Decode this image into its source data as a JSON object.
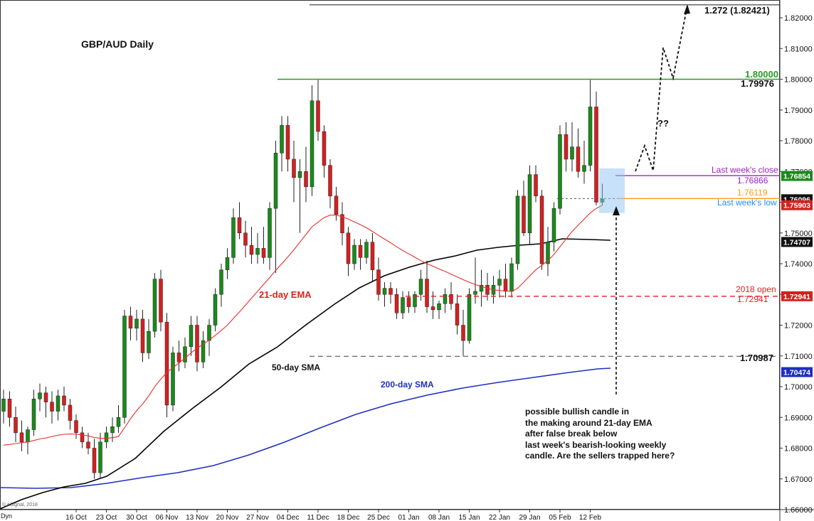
{
  "chart_data": {
    "type": "candlestick",
    "title": "GBP/AUD Daily",
    "colors": {
      "up": "#1a8a1a",
      "down": "#d42020",
      "ema21": "#e8302a",
      "sma50": "#000000",
      "sma200": "#1f2fc0",
      "resistance": "#2a9a2a",
      "open2018": "#e02020",
      "lastclose": "#a020c0",
      "lastlow": "#1f8fff",
      "orange": "#ff9a1a"
    },
    "ylim": [
      1.6565,
      1.8268
    ],
    "yticks": [
      {
        "v": 1.82,
        "label": "1.82000"
      },
      {
        "v": 1.81,
        "label": "1.81000"
      },
      {
        "v": 1.8,
        "label": "1.80000"
      },
      {
        "v": 1.79,
        "label": "1.79000"
      },
      {
        "v": 1.78,
        "label": "1.78000"
      },
      {
        "v": 1.77,
        "label": "1.77000"
      },
      {
        "v": 1.76,
        "label": "1.76000"
      },
      {
        "v": 1.75,
        "label": "1.75000"
      },
      {
        "v": 1.74,
        "label": "1.74000"
      },
      {
        "v": 1.73,
        "label": "1.73000"
      },
      {
        "v": 1.72,
        "label": "1.72000"
      },
      {
        "v": 1.71,
        "label": "1.71000"
      },
      {
        "v": 1.7,
        "label": "1.70000"
      },
      {
        "v": 1.69,
        "label": "1.69000"
      },
      {
        "v": 1.68,
        "label": "1.68000"
      },
      {
        "v": 1.67,
        "label": "1.67000"
      },
      {
        "v": 1.66,
        "label": "1.66000"
      }
    ],
    "xticks": [
      {
        "i": 12,
        "label": "16 Oct"
      },
      {
        "i": 17,
        "label": "23 Oct"
      },
      {
        "i": 22,
        "label": "30 Oct"
      },
      {
        "i": 27,
        "label": "06 Nov"
      },
      {
        "i": 32,
        "label": "13 Nov"
      },
      {
        "i": 37,
        "label": "20 Nov"
      },
      {
        "i": 42,
        "label": "27 Nov"
      },
      {
        "i": 47,
        "label": "04 Dec"
      },
      {
        "i": 52,
        "label": "11 Dec"
      },
      {
        "i": 57,
        "label": "18 Dec"
      },
      {
        "i": 62,
        "label": "25 Dec"
      },
      {
        "i": 67,
        "label": "01 Jan"
      },
      {
        "i": 72,
        "label": "08 Jan"
      },
      {
        "i": 77,
        "label": "15 Jan"
      },
      {
        "i": 82,
        "label": "22 Jan"
      },
      {
        "i": 87,
        "label": "29 Jan"
      },
      {
        "i": 92,
        "label": "05 Feb"
      },
      {
        "i": 97,
        "label": "12 Feb"
      }
    ],
    "ohlc": [
      [
        1.692,
        1.699,
        1.688,
        1.696
      ],
      [
        1.696,
        1.6985,
        1.687,
        1.69
      ],
      [
        1.69,
        1.6935,
        1.682,
        1.685
      ],
      [
        1.685,
        1.689,
        1.679,
        1.682
      ],
      [
        1.682,
        1.687,
        1.678,
        1.686
      ],
      [
        1.686,
        1.699,
        1.684,
        1.696
      ],
      [
        1.696,
        1.701,
        1.692,
        1.698
      ],
      [
        1.698,
        1.7,
        1.69,
        1.695
      ],
      [
        1.695,
        1.6985,
        1.688,
        1.692
      ],
      [
        1.692,
        1.699,
        1.689,
        1.697
      ],
      [
        1.697,
        1.7,
        1.692,
        1.694
      ],
      [
        1.694,
        1.696,
        1.686,
        1.689
      ],
      [
        1.689,
        1.691,
        1.683,
        1.685
      ],
      [
        1.685,
        1.687,
        1.68,
        1.682
      ],
      [
        1.682,
        1.685,
        1.678,
        1.68
      ],
      [
        1.68,
        1.683,
        1.67,
        1.672
      ],
      [
        1.672,
        1.685,
        1.67,
        1.682
      ],
      [
        1.682,
        1.687,
        1.68,
        1.685
      ],
      [
        1.685,
        1.69,
        1.682,
        1.687
      ],
      [
        1.687,
        1.694,
        1.685,
        1.69
      ],
      [
        1.69,
        1.725,
        1.688,
        1.723
      ],
      [
        1.723,
        1.726,
        1.715,
        1.719
      ],
      [
        1.719,
        1.725,
        1.715,
        1.722
      ],
      [
        1.722,
        1.725,
        1.708,
        1.711
      ],
      [
        1.711,
        1.722,
        1.709,
        1.718
      ],
      [
        1.718,
        1.737,
        1.716,
        1.735
      ],
      [
        1.735,
        1.738,
        1.718,
        1.721
      ],
      [
        1.721,
        1.724,
        1.69,
        1.694
      ],
      [
        1.694,
        1.713,
        1.692,
        1.711
      ],
      [
        1.711,
        1.715,
        1.705,
        1.708
      ],
      [
        1.708,
        1.716,
        1.706,
        1.713
      ],
      [
        1.713,
        1.723,
        1.71,
        1.72
      ],
      [
        1.72,
        1.723,
        1.705,
        1.708
      ],
      [
        1.708,
        1.718,
        1.706,
        1.715
      ],
      [
        1.715,
        1.722,
        1.71,
        1.72
      ],
      [
        1.72,
        1.732,
        1.718,
        1.73
      ],
      [
        1.73,
        1.74,
        1.726,
        1.738
      ],
      [
        1.738,
        1.745,
        1.735,
        1.742
      ],
      [
        1.742,
        1.758,
        1.74,
        1.755
      ],
      [
        1.755,
        1.76,
        1.748,
        1.75
      ],
      [
        1.75,
        1.754,
        1.742,
        1.746
      ],
      [
        1.746,
        1.752,
        1.74,
        1.743
      ],
      [
        1.743,
        1.75,
        1.74,
        1.745
      ],
      [
        1.745,
        1.752,
        1.74,
        1.742
      ],
      [
        1.742,
        1.76,
        1.738,
        1.758
      ],
      [
        1.758,
        1.78,
        1.737,
        1.776
      ],
      [
        1.776,
        1.788,
        1.77,
        1.785
      ],
      [
        1.785,
        1.788,
        1.77,
        1.774
      ],
      [
        1.774,
        1.78,
        1.76,
        1.768
      ],
      [
        1.768,
        1.774,
        1.75,
        1.77
      ],
      [
        1.77,
        1.778,
        1.76,
        1.765
      ],
      [
        1.765,
        1.798,
        1.762,
        1.793
      ],
      [
        1.793,
        1.7998,
        1.78,
        1.783
      ],
      [
        1.783,
        1.785,
        1.768,
        1.772
      ],
      [
        1.772,
        1.774,
        1.758,
        1.762
      ],
      [
        1.762,
        1.765,
        1.754,
        1.756
      ],
      [
        1.756,
        1.76,
        1.746,
        1.75
      ],
      [
        1.75,
        1.752,
        1.736,
        1.74
      ],
      [
        1.74,
        1.748,
        1.738,
        1.746
      ],
      [
        1.746,
        1.748,
        1.738,
        1.742
      ],
      [
        1.742,
        1.748,
        1.74,
        1.747
      ],
      [
        1.747,
        1.75,
        1.734,
        1.738
      ],
      [
        1.738,
        1.742,
        1.728,
        1.73
      ],
      [
        1.73,
        1.734,
        1.726,
        1.732
      ],
      [
        1.732,
        1.734,
        1.727,
        1.73
      ],
      [
        1.73,
        1.732,
        1.722,
        1.724
      ],
      [
        1.724,
        1.731,
        1.722,
        1.729
      ],
      [
        1.729,
        1.731,
        1.724,
        1.726
      ],
      [
        1.726,
        1.731,
        1.724,
        1.73
      ],
      [
        1.73,
        1.738,
        1.728,
        1.735
      ],
      [
        1.735,
        1.741,
        1.724,
        1.726
      ],
      [
        1.726,
        1.731,
        1.722,
        1.725
      ],
      [
        1.725,
        1.728,
        1.722,
        1.727
      ],
      [
        1.727,
        1.732,
        1.724,
        1.73
      ],
      [
        1.73,
        1.734,
        1.725,
        1.727
      ],
      [
        1.727,
        1.73,
        1.717,
        1.72
      ],
      [
        1.72,
        1.725,
        1.71,
        1.715
      ],
      [
        1.715,
        1.732,
        1.714,
        1.73
      ],
      [
        1.73,
        1.742,
        1.727,
        1.731
      ],
      [
        1.731,
        1.738,
        1.726,
        1.733
      ],
      [
        1.733,
        1.737,
        1.728,
        1.73
      ],
      [
        1.73,
        1.736,
        1.727,
        1.733
      ],
      [
        1.733,
        1.738,
        1.729,
        1.735
      ],
      [
        1.735,
        1.74,
        1.729,
        1.731
      ],
      [
        1.731,
        1.742,
        1.729,
        1.74
      ],
      [
        1.74,
        1.764,
        1.738,
        1.762
      ],
      [
        1.762,
        1.767,
        1.749,
        1.75
      ],
      [
        1.75,
        1.772,
        1.746,
        1.769
      ],
      [
        1.769,
        1.772,
        1.76,
        1.762
      ],
      [
        1.762,
        1.764,
        1.738,
        1.74
      ],
      [
        1.74,
        1.752,
        1.736,
        1.747
      ],
      [
        1.747,
        1.76,
        1.744,
        1.758
      ],
      [
        1.758,
        1.785,
        1.756,
        1.782
      ],
      [
        1.782,
        1.786,
        1.77,
        1.774
      ],
      [
        1.774,
        1.786,
        1.77,
        1.778
      ],
      [
        1.778,
        1.784,
        1.768,
        1.77
      ],
      [
        1.77,
        1.78,
        1.766,
        1.772
      ],
      [
        1.772,
        1.7998,
        1.77,
        1.791
      ],
      [
        1.791,
        1.796,
        1.759,
        1.76
      ],
      [
        1.76,
        1.766,
        1.759,
        1.761
      ]
    ],
    "ema21": [
      1.681,
      1.6812,
      1.6815,
      1.6818,
      1.682,
      1.6825,
      1.683,
      1.6833,
      1.6838,
      1.6842,
      1.6845,
      1.6846,
      1.6845,
      1.6843,
      1.684,
      1.6835,
      1.6832,
      1.6832,
      1.6834,
      1.6838,
      1.6866,
      1.6896,
      1.6922,
      1.6944,
      1.697,
      1.7,
      1.7025,
      1.7046,
      1.7062,
      1.7077,
      1.7093,
      1.711,
      1.7125,
      1.7138,
      1.7152,
      1.7167,
      1.7183,
      1.72,
      1.7222,
      1.7243,
      1.7265,
      1.7288,
      1.731,
      1.7333,
      1.7355,
      1.7378,
      1.74,
      1.7422,
      1.7445,
      1.747,
      1.7495,
      1.752,
      1.7535,
      1.755,
      1.7558,
      1.7558,
      1.7553,
      1.7545,
      1.7536,
      1.7527,
      1.7517,
      1.7505,
      1.7492,
      1.748,
      1.7468,
      1.7455,
      1.7443,
      1.7432,
      1.7421,
      1.741,
      1.74,
      1.7392,
      1.7383,
      1.7375,
      1.7366,
      1.7357,
      1.7348,
      1.734,
      1.7332,
      1.7326,
      1.732,
      1.7315,
      1.7313,
      1.7311,
      1.731,
      1.732,
      1.734,
      1.736,
      1.738,
      1.7395,
      1.741,
      1.743,
      1.7455,
      1.748,
      1.7505,
      1.7525,
      1.7545,
      1.7565,
      1.758,
      1.759
    ]
  },
  "labels": {
    "title": "GBP/AUD Daily",
    "ema21": "21-day EMA",
    "sma50": "50-day SMA",
    "sma200": "200-day SMA",
    "ext": "1.272 (1.82421)",
    "res_price": "1.80000",
    "res_high": "1.79976",
    "qq": "??",
    "last_close": "Last week's close",
    "last_close_val": "1.76866",
    "orange_val": "1.76119",
    "last_low": "Last week's low",
    "open2018": "2018 open",
    "open2018_val": "1.72941",
    "support_val": "1.70987",
    "copyright": "© eSignal, 2018",
    "dyn": "Dyn",
    "note": [
      "possible bullish candle in",
      "the making around 21-day EMA",
      "after false break below",
      "last week's bearish-looking weekly",
      "candle. Are the sellers trapped here?"
    ]
  },
  "price_tags": [
    {
      "label": "1.76854",
      "v": 1.76854,
      "bg": "#1a8a1a"
    },
    {
      "label": "1.76096",
      "v": 1.76096,
      "bg": "#111111"
    },
    {
      "label": "1.75903",
      "v": 1.75903,
      "bg": "#d42020"
    },
    {
      "label": "1.74707",
      "v": 1.74707,
      "bg": "#111111"
    },
    {
      "label": "1.72941",
      "v": 1.72941,
      "bg": "#d42020"
    },
    {
      "label": "1.70474",
      "v": 1.70474,
      "bg": "#1f2fc0"
    }
  ]
}
